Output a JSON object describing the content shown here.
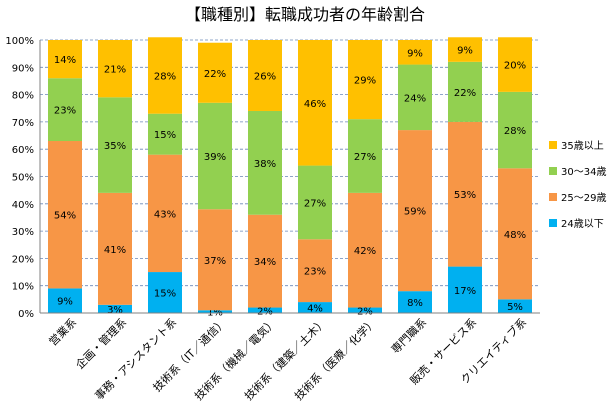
{
  "chart_data": {
    "type": "bar",
    "stacked": true,
    "title": "【職種別】転職成功者の年齢割合",
    "categories": [
      "営業系",
      "企画・管理系",
      "事務・アシスタント系",
      "技術系（IT／通信）",
      "技術系（機械／電気）",
      "技術系（建築／土木）",
      "技術系（医療／化学）",
      "専門職系",
      "販売・サービス系",
      "クリエイティブ系"
    ],
    "series": [
      {
        "name": "24歳以下",
        "color": "#00b0f0",
        "values": [
          9,
          3,
          15,
          1,
          2,
          4,
          2,
          8,
          17,
          5
        ]
      },
      {
        "name": "25～29歳",
        "color": "#f79646",
        "values": [
          54,
          41,
          43,
          37,
          34,
          23,
          42,
          59,
          53,
          48
        ]
      },
      {
        "name": "30～34歳",
        "color": "#92d050",
        "values": [
          23,
          35,
          15,
          39,
          38,
          27,
          27,
          24,
          22,
          28
        ]
      },
      {
        "name": "35歳以上",
        "color": "#ffc000",
        "values": [
          14,
          21,
          28,
          22,
          26,
          46,
          29,
          9,
          9,
          20
        ]
      }
    ],
    "ylim": [
      0,
      100
    ],
    "yticks": [
      "0%",
      "10%",
      "20%",
      "30%",
      "40%",
      "50%",
      "60%",
      "70%",
      "80%",
      "90%",
      "100%"
    ],
    "unit": "%",
    "grid": true,
    "legend_position": "right"
  }
}
